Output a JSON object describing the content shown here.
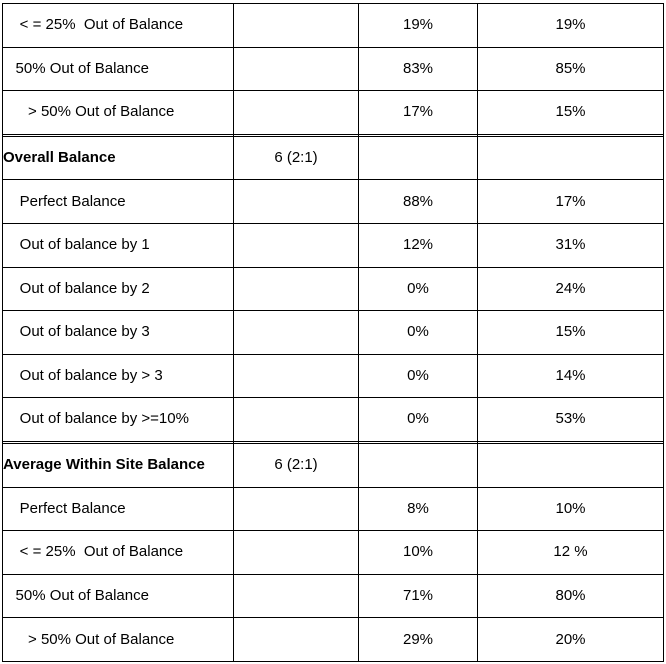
{
  "colors": {
    "border": "#000000",
    "text": "#000000",
    "background": "#ffffff"
  },
  "table": {
    "rows": [
      {
        "label": "    < = 25%  Out of Balance",
        "group": "",
        "pct_a": "19%",
        "pct_b": "19%",
        "bold": false
      },
      {
        "label": "   50% Out of Balance",
        "group": "",
        "pct_a": "83%",
        "pct_b": "85%",
        "bold": false
      },
      {
        "label": "      > 50% Out of Balance",
        "group": "",
        "pct_a": "17%",
        "pct_b": "15%",
        "bold": false
      },
      {
        "label": "",
        "group": "",
        "pct_a": "",
        "pct_b": "",
        "bold": false
      },
      {
        "label": "Overall Balance",
        "group": "6 (2:1)",
        "pct_a": "",
        "pct_b": "",
        "bold": true
      },
      {
        "label": "    Perfect Balance",
        "group": "",
        "pct_a": "88%",
        "pct_b": "17%",
        "bold": false
      },
      {
        "label": "    Out of balance by 1",
        "group": "",
        "pct_a": "12%",
        "pct_b": "31%",
        "bold": false
      },
      {
        "label": "    Out of balance by 2",
        "group": "",
        "pct_a": "0%",
        "pct_b": "24%",
        "bold": false
      },
      {
        "label": "    Out of balance by 3",
        "group": "",
        "pct_a": "0%",
        "pct_b": "15%",
        "bold": false
      },
      {
        "label": "    Out of balance by > 3",
        "group": "",
        "pct_a": "0%",
        "pct_b": "14%",
        "bold": false
      },
      {
        "label": "    Out of balance by >=10%",
        "group": "",
        "pct_a": "0%",
        "pct_b": "53%",
        "bold": false
      },
      {
        "label": "",
        "group": "",
        "pct_a": "",
        "pct_b": "",
        "bold": false
      },
      {
        "label": "Average Within Site Balance",
        "group": "6 (2:1)",
        "pct_a": "",
        "pct_b": "",
        "bold": true
      },
      {
        "label": "    Perfect Balance",
        "group": "",
        "pct_a": "8%",
        "pct_b": "10%",
        "bold": false
      },
      {
        "label": "    < = 25%  Out of Balance",
        "group": "",
        "pct_a": "10%",
        "pct_b": "12 %",
        "bold": false
      },
      {
        "label": "   50% Out of Balance",
        "group": "",
        "pct_a": "71%",
        "pct_b": "80%",
        "bold": false
      },
      {
        "label": "      > 50% Out of Balance",
        "group": "",
        "pct_a": "29%",
        "pct_b": "20%",
        "bold": false
      }
    ]
  }
}
